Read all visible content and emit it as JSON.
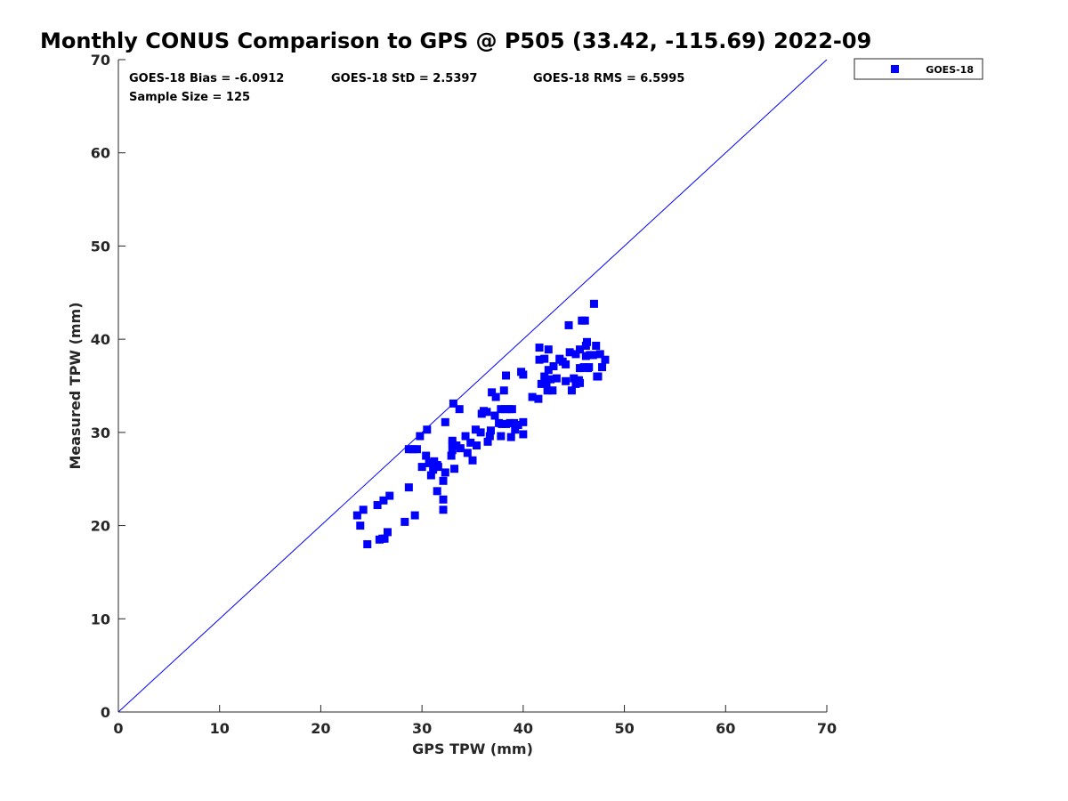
{
  "title": "Monthly CONUS Comparison to GPS @ P505 (33.42, -115.69) 2022-09",
  "stats": {
    "bias": "GOES-18 Bias = -6.0912",
    "std": "GOES-18 StD = 2.5397",
    "rms": "GOES-18 RMS = 6.5995",
    "sample_size": "Sample Size = 125"
  },
  "legend": {
    "label": "GOES-18",
    "color": "#0000ff",
    "placement": "outside-top-right"
  },
  "chart_data": {
    "type": "scatter",
    "title": "Monthly CONUS Comparison to GPS @ P505 (33.42, -115.69) 2022-09",
    "xlabel": "GPS TPW (mm)",
    "ylabel": "Measured TPW (mm)",
    "xlim": [
      0,
      70
    ],
    "ylim": [
      0,
      70
    ],
    "xticks": [
      0,
      10,
      20,
      30,
      40,
      50,
      60,
      70
    ],
    "yticks": [
      0,
      10,
      20,
      30,
      40,
      50,
      60,
      70
    ],
    "grid": false,
    "reference_line": {
      "x": [
        0,
        70
      ],
      "y": [
        0,
        70
      ],
      "color": "#0000ff"
    },
    "series": [
      {
        "name": "GOES-18",
        "color": "#0000ff",
        "marker": "square",
        "points": [
          [
            23.6,
            21.1
          ],
          [
            24.2,
            21.7
          ],
          [
            23.9,
            20.0
          ],
          [
            24.6,
            18.0
          ],
          [
            25.6,
            22.2
          ],
          [
            26.2,
            22.7
          ],
          [
            26.8,
            23.2
          ],
          [
            25.8,
            18.5
          ],
          [
            26.3,
            18.6
          ],
          [
            26.6,
            19.3
          ],
          [
            28.3,
            20.4
          ],
          [
            28.7,
            24.1
          ],
          [
            29.3,
            21.1
          ],
          [
            28.7,
            28.2
          ],
          [
            29.1,
            28.2
          ],
          [
            29.5,
            28.2
          ],
          [
            29.8,
            29.6
          ],
          [
            30.5,
            30.3
          ],
          [
            30.0,
            26.3
          ],
          [
            30.4,
            27.5
          ],
          [
            30.7,
            26.7
          ],
          [
            30.9,
            25.4
          ],
          [
            31.1,
            26.0
          ],
          [
            31.2,
            26.9
          ],
          [
            31.5,
            26.5
          ],
          [
            31.6,
            26.3
          ],
          [
            31.5,
            23.7
          ],
          [
            32.1,
            24.8
          ],
          [
            32.1,
            22.8
          ],
          [
            32.1,
            21.7
          ],
          [
            32.3,
            25.7
          ],
          [
            32.3,
            31.1
          ],
          [
            32.9,
            27.5
          ],
          [
            33.0,
            29.1
          ],
          [
            33.0,
            28.1
          ],
          [
            33.1,
            33.1
          ],
          [
            33.2,
            26.1
          ],
          [
            33.4,
            28.6
          ],
          [
            33.7,
            32.5
          ],
          [
            33.8,
            28.3
          ],
          [
            34.3,
            29.6
          ],
          [
            34.5,
            27.8
          ],
          [
            34.8,
            28.9
          ],
          [
            35.0,
            27.0
          ],
          [
            35.3,
            30.3
          ],
          [
            35.4,
            28.6
          ],
          [
            35.8,
            30.0
          ],
          [
            35.9,
            32.0
          ],
          [
            36.1,
            32.3
          ],
          [
            36.4,
            32.2
          ],
          [
            36.5,
            29.0
          ],
          [
            36.7,
            29.6
          ],
          [
            36.8,
            30.2
          ],
          [
            36.9,
            34.3
          ],
          [
            37.2,
            31.8
          ],
          [
            37.3,
            33.8
          ],
          [
            37.8,
            32.5
          ],
          [
            37.8,
            29.6
          ],
          [
            37.9,
            30.9
          ],
          [
            38.1,
            34.5
          ],
          [
            38.2,
            32.5
          ],
          [
            38.3,
            36.1
          ],
          [
            38.3,
            30.9
          ],
          [
            38.6,
            32.5
          ],
          [
            38.7,
            31.0
          ],
          [
            38.8,
            29.5
          ],
          [
            38.9,
            32.5
          ],
          [
            39.1,
            31.0
          ],
          [
            39.2,
            30.3
          ],
          [
            39.5,
            30.8
          ],
          [
            39.8,
            36.5
          ],
          [
            40.0,
            36.2
          ],
          [
            40.0,
            29.8
          ],
          [
            40.0,
            31.1
          ],
          [
            40.9,
            33.8
          ],
          [
            41.5,
            33.6
          ],
          [
            41.6,
            39.1
          ],
          [
            41.6,
            37.8
          ],
          [
            41.8,
            35.2
          ],
          [
            42.1,
            36.0
          ],
          [
            42.1,
            37.9
          ],
          [
            42.3,
            35.3
          ],
          [
            42.4,
            34.5
          ],
          [
            42.5,
            36.7
          ],
          [
            42.5,
            38.9
          ],
          [
            42.9,
            34.5
          ],
          [
            42.7,
            35.7
          ],
          [
            43.0,
            37.1
          ],
          [
            43.3,
            35.8
          ],
          [
            43.6,
            37.8
          ],
          [
            43.9,
            37.6
          ],
          [
            44.2,
            35.5
          ],
          [
            44.2,
            37.3
          ],
          [
            44.5,
            41.5
          ],
          [
            44.6,
            38.6
          ],
          [
            44.8,
            34.5
          ],
          [
            45.0,
            35.8
          ],
          [
            45.2,
            38.4
          ],
          [
            45.2,
            35.2
          ],
          [
            45.5,
            35.6
          ],
          [
            45.6,
            35.3
          ],
          [
            45.6,
            36.9
          ],
          [
            45.6,
            38.9
          ],
          [
            45.8,
            42.0
          ],
          [
            46.1,
            42.0
          ],
          [
            46.0,
            37.0
          ],
          [
            46.2,
            39.3
          ],
          [
            46.2,
            38.2
          ],
          [
            46.3,
            39.7
          ],
          [
            46.5,
            37.0
          ],
          [
            46.6,
            38.3
          ],
          [
            46.9,
            38.3
          ],
          [
            47.0,
            43.8
          ],
          [
            47.2,
            39.3
          ],
          [
            47.3,
            36.0
          ],
          [
            47.4,
            36.0
          ],
          [
            47.6,
            38.4
          ],
          [
            47.8,
            37.0
          ],
          [
            48.1,
            37.8
          ],
          [
            46.4,
            36.9
          ],
          [
            43.6,
            37.9
          ],
          [
            37.6,
            31.0
          ],
          [
            33.0,
            28.8
          ],
          [
            31.1,
            26.7
          ],
          [
            26.1,
            18.6
          ]
        ]
      }
    ]
  }
}
